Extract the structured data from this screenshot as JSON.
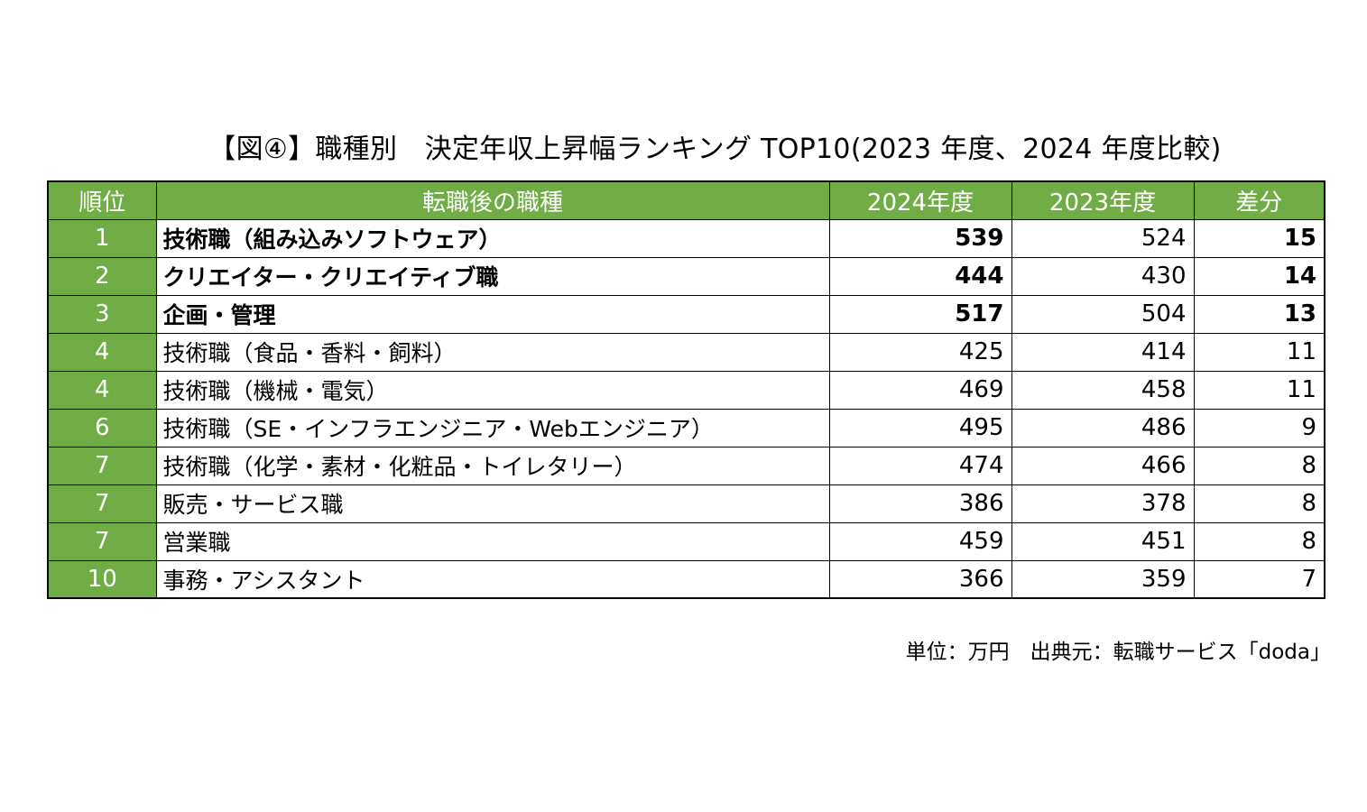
{
  "title": "【図④】職種別　決定年収上昇幅ランキング TOP10(2023 年度、2024 年度比較)",
  "source_note": "単位：万円　出典元：転職サービス「doda」",
  "colors": {
    "header_bg": "#70ad47",
    "header_text": "#ffffff"
  },
  "chart_data": {
    "type": "table",
    "title": "【図④】職種別　決定年収上昇幅ランキング TOP10(2023 年度、2024 年度比較)",
    "columns": [
      "順位",
      "転職後の職種",
      "2024年度",
      "2023年度",
      "差分"
    ],
    "rows": [
      {
        "rank": "1",
        "job": "技術職（組み込みソフトウェア）",
        "y2024": "539",
        "y2023": "524",
        "diff": "15",
        "bold": true
      },
      {
        "rank": "2",
        "job": "クリエイター・クリエイティブ職",
        "y2024": "444",
        "y2023": "430",
        "diff": "14",
        "bold": true
      },
      {
        "rank": "3",
        "job": "企画・管理",
        "y2024": "517",
        "y2023": "504",
        "diff": "13",
        "bold": true
      },
      {
        "rank": "4",
        "job": "技術職（食品・香料・飼料）",
        "y2024": "425",
        "y2023": "414",
        "diff": "11",
        "bold": false
      },
      {
        "rank": "4",
        "job": "技術職（機械・電気）",
        "y2024": "469",
        "y2023": "458",
        "diff": "11",
        "bold": false
      },
      {
        "rank": "6",
        "job": "技術職（SE・インフラエンジニア・Webエンジニア）",
        "y2024": "495",
        "y2023": "486",
        "diff": "9",
        "bold": false
      },
      {
        "rank": "7",
        "job": "技術職（化学・素材・化粧品・トイレタリー）",
        "y2024": "474",
        "y2023": "466",
        "diff": "8",
        "bold": false
      },
      {
        "rank": "7",
        "job": "販売・サービス職",
        "y2024": "386",
        "y2023": "378",
        "diff": "8",
        "bold": false
      },
      {
        "rank": "7",
        "job": "営業職",
        "y2024": "459",
        "y2023": "451",
        "diff": "8",
        "bold": false
      },
      {
        "rank": "10",
        "job": "事務・アシスタント",
        "y2024": "366",
        "y2023": "359",
        "diff": "7",
        "bold": false
      }
    ]
  }
}
